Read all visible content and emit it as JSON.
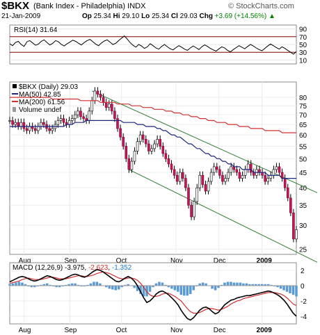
{
  "header": {
    "symbol": "$BKX",
    "name": "(Bank Index - Philadelphia)  INDX",
    "brand": "© StockCharts.com",
    "date": "21-Jan-2009",
    "open_label": "Op",
    "open": "25.34",
    "high_label": "Hi",
    "high": "29.10",
    "low_label": "Lo",
    "low": "25.34",
    "close_label": "Cl",
    "close": "29.03",
    "chg_label": "Chg",
    "chg": "+3.69 (+14.56%)",
    "chg_arrow": "▲"
  },
  "chart_data": [
    {
      "type": "line",
      "panel": "rsi",
      "legend": "RSI(14) 31.64",
      "ylim": [
        0,
        100
      ],
      "yticks": [
        10,
        30,
        50,
        70,
        90
      ],
      "reference_lines": [
        30,
        70
      ],
      "series": [
        {
          "name": "RSI(14)",
          "values": [
            52,
            47,
            55,
            58,
            50,
            45,
            57,
            60,
            54,
            48,
            51,
            58,
            62,
            55,
            49,
            53,
            60,
            57,
            50,
            46,
            52,
            56,
            61,
            58,
            53,
            49,
            55,
            60,
            63,
            57,
            51,
            47,
            54,
            59,
            62,
            56,
            50,
            53,
            60,
            66,
            72,
            64,
            55,
            48,
            43,
            50,
            46,
            40,
            44,
            52,
            47,
            41,
            38,
            45,
            50,
            44,
            39,
            36,
            42,
            47,
            43,
            38,
            35,
            41,
            46,
            42,
            37,
            44,
            49,
            45,
            40,
            36,
            33,
            39,
            44,
            41,
            35,
            31,
            37,
            42,
            47,
            43,
            39,
            45,
            50,
            46,
            41,
            37,
            34,
            40,
            46,
            51,
            47,
            42,
            38,
            44,
            40,
            35,
            30,
            25,
            32
          ]
        }
      ]
    },
    {
      "type": "line",
      "panel": "price",
      "ticker_legend": "$BKX (Daily) 29.03",
      "volume_legend": "Volume undef",
      "yscale": "log",
      "ylim": [
        24,
        90
      ],
      "yticks": [
        25,
        30,
        35,
        40,
        45,
        50,
        55,
        60,
        65,
        70,
        75,
        80
      ],
      "xticks": [
        "Aug",
        "Sep",
        "Oct",
        "Nov",
        "Dec",
        "2009"
      ],
      "series": [
        {
          "name": "$BKX",
          "values": [
            67,
            65,
            66,
            64,
            66,
            63,
            62,
            64,
            63,
            62,
            64,
            66,
            65,
            63,
            62,
            63,
            65,
            67,
            68,
            66,
            65,
            67,
            68,
            70,
            72,
            69,
            68,
            67,
            72,
            78,
            84,
            82,
            80,
            77,
            74,
            76,
            72,
            68,
            63,
            59,
            55,
            50,
            46,
            49,
            53,
            57,
            60,
            58,
            56,
            53,
            54,
            56,
            58,
            55,
            52,
            50,
            48,
            46,
            44,
            42,
            45,
            43,
            40,
            35,
            32,
            36,
            40,
            44,
            41,
            39,
            42,
            45,
            47,
            46,
            44,
            42,
            43,
            45,
            47,
            46,
            45,
            43,
            44,
            46,
            48,
            45,
            44,
            46,
            45,
            44,
            42,
            43,
            44,
            46,
            47,
            45,
            43,
            40,
            37,
            33,
            27,
            29
          ]
        },
        {
          "name": "MA(50) 42.85",
          "values": [
            64,
            64,
            64,
            64,
            64,
            64,
            64,
            64,
            64,
            64,
            64,
            64,
            64,
            64,
            64,
            64,
            64,
            64,
            64,
            64,
            65,
            65,
            65,
            66,
            66,
            66,
            66,
            67,
            67,
            67,
            67,
            67,
            67,
            67,
            67,
            67,
            67,
            67,
            67,
            67,
            66,
            66,
            66,
            66,
            66,
            65,
            65,
            65,
            64,
            64,
            64,
            64,
            63,
            63,
            62,
            62,
            61,
            60,
            60,
            59,
            59,
            58,
            57,
            56,
            56,
            55,
            54,
            54,
            53,
            52,
            52,
            51,
            51,
            50,
            50,
            49,
            49,
            48,
            48,
            47,
            47,
            47,
            46,
            46,
            46,
            46,
            45,
            45,
            45,
            45,
            45,
            44,
            44,
            44,
            44,
            44,
            43,
            43,
            43,
            43,
            43,
            43
          ]
        },
        {
          "name": "MA(200) 61.56",
          "values": [
            80,
            80,
            80,
            80,
            80,
            80,
            80,
            80,
            80,
            80,
            80,
            80,
            80,
            80,
            80,
            79,
            79,
            79,
            79,
            79,
            79,
            79,
            79,
            79,
            79,
            78,
            78,
            78,
            78,
            78,
            78,
            78,
            77,
            77,
            77,
            77,
            77,
            77,
            76,
            76,
            76,
            76,
            76,
            75,
            75,
            75,
            75,
            74,
            74,
            74,
            74,
            73,
            73,
            73,
            73,
            72,
            72,
            72,
            71,
            71,
            71,
            70,
            70,
            70,
            69,
            69,
            69,
            68,
            68,
            68,
            67,
            67,
            67,
            66,
            66,
            66,
            66,
            65,
            65,
            65,
            65,
            64,
            64,
            64,
            64,
            63,
            63,
            63,
            63,
            63,
            62,
            62,
            62,
            62,
            62,
            62,
            61,
            61,
            61,
            61,
            61,
            61
          ]
        }
      ]
    },
    {
      "type": "line",
      "panel": "macd",
      "legend_title": "MACD (12,26,9)",
      "macd_value": "-3.975",
      "signal_value": "-2.623",
      "hist_value": "-1.352",
      "ylim": [
        -5,
        3
      ],
      "yticks": [
        -4,
        -2,
        0,
        2
      ],
      "xticks": [
        "Aug",
        "Sep",
        "Oct",
        "Nov",
        "Dec",
        "2009"
      ],
      "series": [
        {
          "name": "MACD",
          "values": [
            0.5,
            0.7,
            0.9,
            1.1,
            1.2,
            1.1,
            0.9,
            0.7,
            0.6,
            0.7,
            0.9,
            1.1,
            1.3,
            1.2,
            1.0,
            0.8,
            0.7,
            0.8,
            1.0,
            1.2,
            1.4,
            1.5,
            1.4,
            1.2,
            1.1,
            1.3,
            1.6,
            1.9,
            2.1,
            2.0,
            1.8,
            1.5,
            1.2,
            0.9,
            0.6,
            0.5,
            0.7,
            1.0,
            1.2,
            1.0,
            0.6,
            0.0,
            -0.8,
            -1.6,
            -2.2,
            -2.0,
            -1.6,
            -1.1,
            -0.8,
            -0.7,
            -0.9,
            -1.2,
            -1.6,
            -2.0,
            -2.5,
            -3.2,
            -3.8,
            -4.3,
            -4.5,
            -4.2,
            -3.7,
            -3.2,
            -2.9,
            -2.8,
            -3.0,
            -3.4,
            -3.7,
            -3.5,
            -3.0,
            -2.5,
            -2.2,
            -1.9,
            -1.8,
            -1.6,
            -1.5,
            -1.4,
            -1.3,
            -1.3,
            -1.2,
            -1.1,
            -1.0,
            -0.9,
            -0.8,
            -0.7,
            -0.8,
            -1.0,
            -1.2,
            -1.5,
            -1.9,
            -2.4,
            -3.0,
            -3.6,
            -4.0
          ]
        },
        {
          "name": "Signal",
          "values": [
            0.3,
            0.4,
            0.5,
            0.6,
            0.8,
            0.9,
            1.0,
            0.9,
            0.8,
            0.8,
            0.8,
            0.9,
            1.0,
            1.1,
            1.1,
            1.0,
            0.9,
            0.9,
            0.9,
            1.0,
            1.1,
            1.2,
            1.3,
            1.3,
            1.2,
            1.2,
            1.3,
            1.4,
            1.6,
            1.7,
            1.8,
            1.7,
            1.6,
            1.4,
            1.2,
            1.0,
            0.9,
            0.9,
            1.0,
            1.0,
            0.9,
            0.7,
            0.3,
            -0.2,
            -0.8,
            -1.2,
            -1.4,
            -1.4,
            -1.3,
            -1.1,
            -1.0,
            -1.0,
            -1.2,
            -1.4,
            -1.7,
            -2.0,
            -2.5,
            -3.0,
            -3.4,
            -3.6,
            -3.6,
            -3.5,
            -3.3,
            -3.1,
            -3.0,
            -3.0,
            -3.1,
            -3.2,
            -3.1,
            -2.9,
            -2.7,
            -2.4,
            -2.2,
            -2.0,
            -1.9,
            -1.7,
            -1.6,
            -1.5,
            -1.4,
            -1.3,
            -1.2,
            -1.1,
            -1.0,
            -0.9,
            -0.9,
            -0.9,
            -1.0,
            -1.1,
            -1.3,
            -1.6,
            -2.0,
            -2.4,
            -2.6
          ]
        }
      ]
    }
  ]
}
